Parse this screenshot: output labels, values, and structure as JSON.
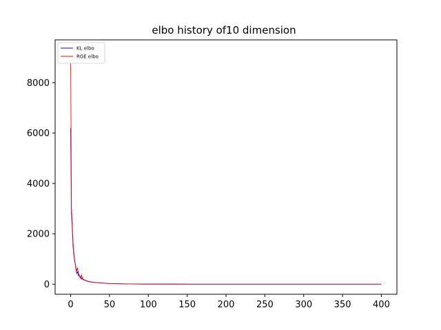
{
  "chart_data": {
    "type": "line",
    "title": "elbo history of10 dimension",
    "xlabel": "",
    "ylabel": "",
    "xlim": [
      -20,
      420
    ],
    "ylim": [
      -400,
      9700
    ],
    "x_ticks": [
      0,
      50,
      100,
      150,
      200,
      250,
      300,
      350,
      400
    ],
    "y_ticks": [
      0,
      2000,
      4000,
      6000,
      8000
    ],
    "grid": false,
    "legend": {
      "position": "top-left"
    },
    "series": [
      {
        "name": "KL elbo",
        "color": "#0000ff",
        "x": [
          0,
          1,
          2,
          3,
          4,
          5,
          6,
          7,
          8,
          9,
          10,
          11,
          12,
          13,
          14,
          15,
          16,
          17,
          18,
          19,
          20,
          22,
          25,
          28,
          30,
          35,
          40,
          45,
          50,
          60,
          70,
          80,
          90,
          100,
          150,
          200,
          250,
          300,
          350,
          400
        ],
        "y": [
          6200,
          2800,
          2300,
          1550,
          1200,
          950,
          780,
          550,
          420,
          500,
          330,
          380,
          250,
          300,
          200,
          260,
          170,
          190,
          150,
          160,
          130,
          110,
          90,
          80,
          70,
          55,
          45,
          35,
          25,
          18,
          12,
          8,
          5,
          3,
          2,
          1,
          1,
          0,
          0,
          0
        ]
      },
      {
        "name": "RGE elbo",
        "color": "#ff0000",
        "x": [
          0,
          1,
          2,
          3,
          4,
          5,
          6,
          7,
          8,
          9,
          10,
          11,
          12,
          13,
          14,
          15,
          16,
          17,
          18,
          19,
          20,
          22,
          25,
          28,
          30,
          35,
          40,
          45,
          50,
          60,
          70,
          80,
          90,
          100,
          150,
          200,
          250,
          300,
          350,
          400
        ],
        "y": [
          9100,
          3000,
          2450,
          1700,
          1300,
          1000,
          800,
          620,
          540,
          650,
          420,
          350,
          300,
          240,
          380,
          210,
          200,
          170,
          160,
          150,
          140,
          120,
          100,
          85,
          75,
          60,
          48,
          38,
          28,
          20,
          14,
          9,
          6,
          4,
          2,
          1,
          1,
          0,
          0,
          0
        ]
      }
    ]
  }
}
